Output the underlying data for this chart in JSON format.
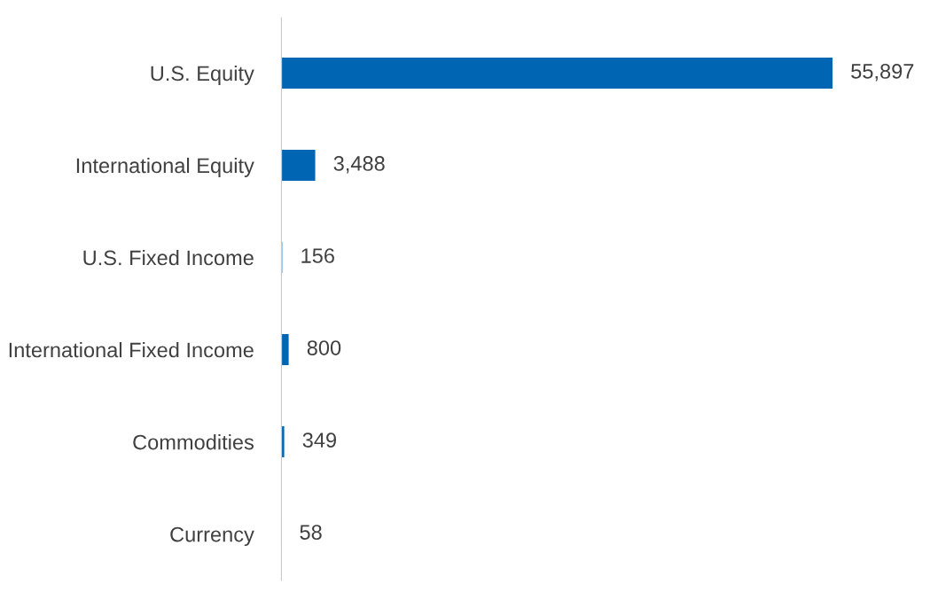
{
  "chart_data": {
    "type": "bar",
    "orientation": "horizontal",
    "categories": [
      "U.S. Equity",
      "International Equity",
      "U.S. Fixed Income",
      "International Fixed Income",
      "Commodities",
      "Currency"
    ],
    "values": [
      55897,
      3488,
      156,
      800,
      349,
      58
    ],
    "value_labels": [
      "55,897",
      "3,488",
      "156",
      "800",
      "349",
      "58"
    ],
    "color": "#0066b3",
    "grid": false,
    "legend": false
  }
}
